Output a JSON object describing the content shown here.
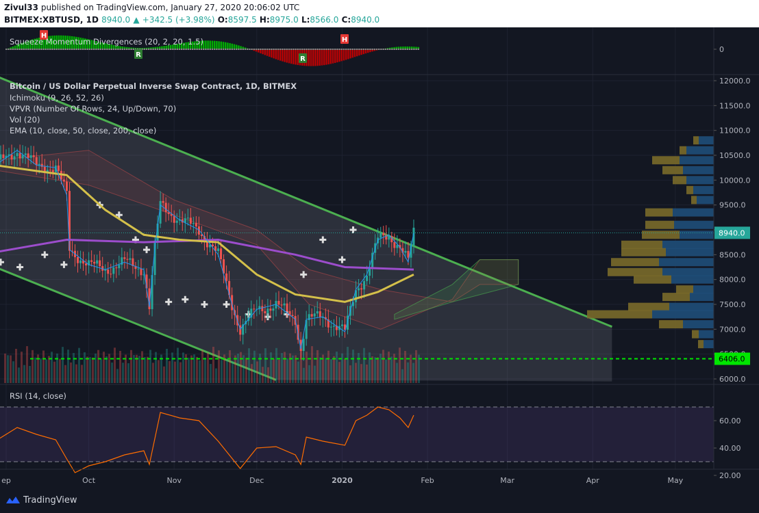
{
  "header": {
    "author": "Zivul33",
    "published": "published on TradingView.com, January 27, 2020 20:06:02 UTC",
    "symbol": "BITMEX:XBTUSD, 1D",
    "last": "8940.0",
    "change_arrow": "▲",
    "change": "+342.5 (+3.98%)",
    "o_label": "O:",
    "o": "8597.5",
    "h_label": "H:",
    "h": "8975.0",
    "l_label": "L:",
    "l": "8566.0",
    "c_label": "C:",
    "c": "8940.0"
  },
  "legends": {
    "squeeze": "Squeeze Momentum Divergences (20, 2, 20, 1.5)",
    "title": "Bitcoin / US Dollar Perpetual Inverse Swap Contract, 1D, BITMEX",
    "ichimoku": "Ichimoku (9, 26, 52, 26)",
    "vpvr": "VPVR (Number Of Rows, 24, Up/Down, 70)",
    "vol": "Vol (20)",
    "ema": "EMA (10, close, 50, close, 200, close)",
    "rsi": "RSI (14, close)"
  },
  "footer": {
    "brand": "TradingView"
  },
  "colors": {
    "background": "#131722",
    "up": "#26a69a",
    "down": "#ef5350",
    "channel": "#4caf50",
    "ema10": "#2196f3",
    "ema50": "#d4c04a",
    "ema200": "#9c4dcc",
    "rsi": "#ff6d00",
    "support": "#00e600",
    "vpvr_up": "#1f4e79",
    "vpvr_down": "#7a6a2a"
  },
  "chart_data": [
    {
      "type": "line",
      "name": "Squeeze Momentum Divergences",
      "y_ticks": [
        "0"
      ],
      "markers": [
        "H",
        "R",
        "R",
        "H"
      ]
    },
    {
      "type": "candlestick",
      "title": "Bitcoin / US Dollar Perpetual Inverse Swap Contract, 1D, BITMEX",
      "x_ticks": [
        "ep",
        "Oct",
        "Nov",
        "Dec",
        "2020",
        "Feb",
        "Mar",
        "Apr",
        "May"
      ],
      "y_ticks": [
        "12000.0",
        "11500.0",
        "11000.0",
        "10500.0",
        "10000.0",
        "9500.0",
        "9000.0",
        "8500.0",
        "8000.0",
        "7500.0",
        "7000.0",
        "6500.0",
        "6000.0"
      ],
      "ylim": [
        5930,
        12080
      ],
      "last_price_label": "8940.0",
      "support_level": 6406.0,
      "support_label": "6406.0",
      "close_path": [
        {
          "x": "2019-08-28",
          "y": 10300
        },
        {
          "x": "2019-09-05",
          "y": 10600
        },
        {
          "x": "2019-09-12",
          "y": 10300
        },
        {
          "x": "2019-09-19",
          "y": 10250
        },
        {
          "x": "2019-09-23",
          "y": 9700
        },
        {
          "x": "2019-09-24",
          "y": 8600
        },
        {
          "x": "2019-10-01",
          "y": 8300
        },
        {
          "x": "2019-10-07",
          "y": 8200
        },
        {
          "x": "2019-10-14",
          "y": 8350
        },
        {
          "x": "2019-10-21",
          "y": 8200
        },
        {
          "x": "2019-10-23",
          "y": 7450
        },
        {
          "x": "2019-10-25",
          "y": 8650
        },
        {
          "x": "2019-10-27",
          "y": 9500
        },
        {
          "x": "2019-11-03",
          "y": 9200
        },
        {
          "x": "2019-11-10",
          "y": 9000
        },
        {
          "x": "2019-11-17",
          "y": 8500
        },
        {
          "x": "2019-11-22",
          "y": 7500
        },
        {
          "x": "2019-11-25",
          "y": 7000
        },
        {
          "x": "2019-12-01",
          "y": 7400
        },
        {
          "x": "2019-12-08",
          "y": 7500
        },
        {
          "x": "2019-12-15",
          "y": 7200
        },
        {
          "x": "2019-12-17",
          "y": 6600
        },
        {
          "x": "2019-12-19",
          "y": 7200
        },
        {
          "x": "2019-12-25",
          "y": 7250
        },
        {
          "x": "2020-01-02",
          "y": 6950
        },
        {
          "x": "2020-01-06",
          "y": 7800
        },
        {
          "x": "2020-01-10",
          "y": 8100
        },
        {
          "x": "2020-01-14",
          "y": 8800
        },
        {
          "x": "2020-01-18",
          "y": 8900
        },
        {
          "x": "2020-01-22",
          "y": 8650
        },
        {
          "x": "2020-01-25",
          "y": 8350
        },
        {
          "x": "2020-01-27",
          "y": 8940
        }
      ],
      "ema50_path": [
        {
          "x": "2019-08-28",
          "y": 10300
        },
        {
          "x": "2019-09-23",
          "y": 10100
        },
        {
          "x": "2019-10-07",
          "y": 9400
        },
        {
          "x": "2019-10-21",
          "y": 8900
        },
        {
          "x": "2019-11-03",
          "y": 8800
        },
        {
          "x": "2019-11-17",
          "y": 8750
        },
        {
          "x": "2019-12-01",
          "y": 8100
        },
        {
          "x": "2019-12-15",
          "y": 7700
        },
        {
          "x": "2020-01-02",
          "y": 7550
        },
        {
          "x": "2020-01-14",
          "y": 7750
        },
        {
          "x": "2020-01-27",
          "y": 8100
        }
      ],
      "ema200_path": [
        {
          "x": "2019-08-28",
          "y": 8550
        },
        {
          "x": "2019-09-23",
          "y": 8800
        },
        {
          "x": "2019-10-21",
          "y": 8750
        },
        {
          "x": "2019-11-17",
          "y": 8800
        },
        {
          "x": "2019-12-15",
          "y": 8500
        },
        {
          "x": "2020-01-02",
          "y": 8250
        },
        {
          "x": "2020-01-27",
          "y": 8200
        }
      ]
    },
    {
      "type": "line",
      "name": "RSI (14, close)",
      "y_ticks": [
        "60.00",
        "40.00",
        "20.00"
      ],
      "ylim": [
        16,
        76
      ],
      "bands": [
        70,
        30
      ],
      "values": [
        {
          "x": "2019-08-28",
          "y": 45
        },
        {
          "x": "2019-09-05",
          "y": 55
        },
        {
          "x": "2019-09-12",
          "y": 50
        },
        {
          "x": "2019-09-19",
          "y": 46
        },
        {
          "x": "2019-09-23",
          "y": 32
        },
        {
          "x": "2019-09-26",
          "y": 22
        },
        {
          "x": "2019-10-01",
          "y": 27
        },
        {
          "x": "2019-10-07",
          "y": 30
        },
        {
          "x": "2019-10-14",
          "y": 35
        },
        {
          "x": "2019-10-21",
          "y": 38
        },
        {
          "x": "2019-10-23",
          "y": 28
        },
        {
          "x": "2019-10-27",
          "y": 66
        },
        {
          "x": "2019-11-03",
          "y": 62
        },
        {
          "x": "2019-11-10",
          "y": 60
        },
        {
          "x": "2019-11-17",
          "y": 45
        },
        {
          "x": "2019-11-25",
          "y": 25
        },
        {
          "x": "2019-12-01",
          "y": 40
        },
        {
          "x": "2019-12-08",
          "y": 41
        },
        {
          "x": "2019-12-15",
          "y": 35
        },
        {
          "x": "2019-12-17",
          "y": 28
        },
        {
          "x": "2019-12-19",
          "y": 48
        },
        {
          "x": "2019-12-25",
          "y": 45
        },
        {
          "x": "2020-01-02",
          "y": 42
        },
        {
          "x": "2020-01-06",
          "y": 60
        },
        {
          "x": "2020-01-10",
          "y": 64
        },
        {
          "x": "2020-01-14",
          "y": 70
        },
        {
          "x": "2020-01-18",
          "y": 68
        },
        {
          "x": "2020-01-22",
          "y": 62
        },
        {
          "x": "2020-01-25",
          "y": 55
        },
        {
          "x": "2020-01-27",
          "y": 64
        }
      ]
    }
  ]
}
